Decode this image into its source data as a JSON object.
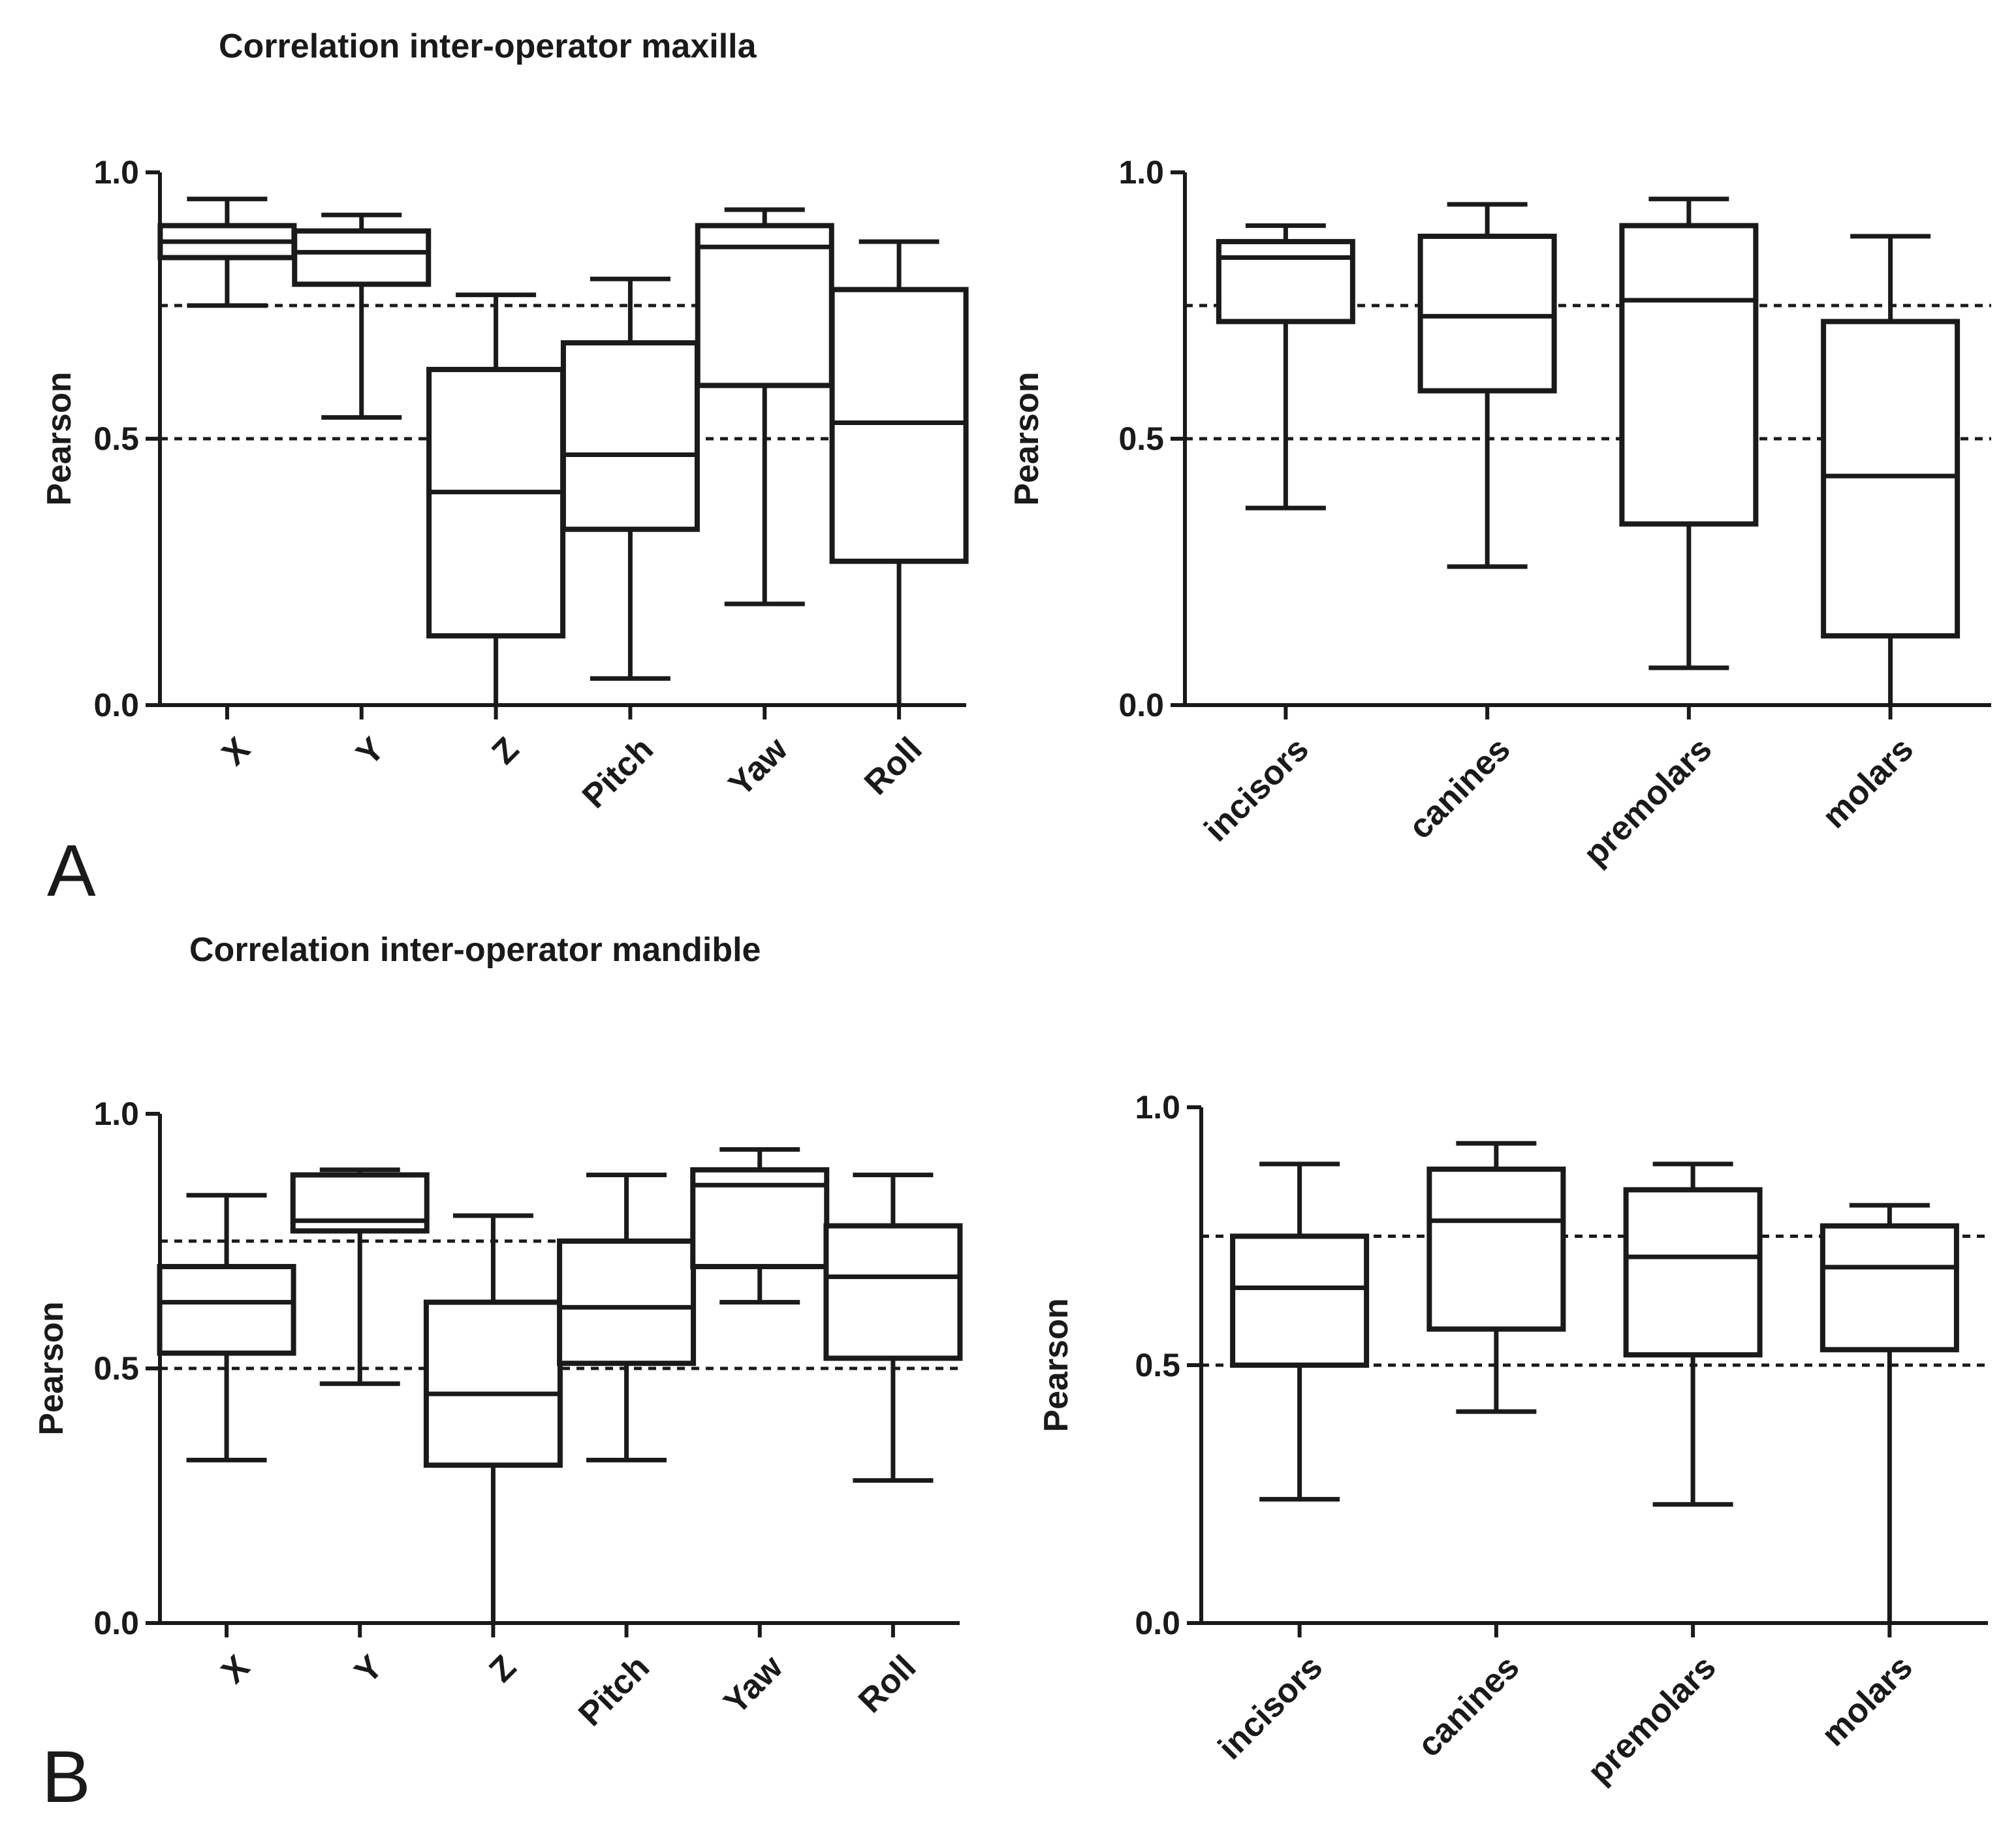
{
  "panels": [
    {
      "letter": "A",
      "title": "Correlation inter-operator maxilla"
    },
    {
      "letter": "B",
      "title": "Correlation inter-operator mandible"
    }
  ],
  "chart_data": [
    {
      "id": "A-left",
      "type": "boxplot",
      "panel": "A",
      "title": "Correlation inter-operator maxilla",
      "ylabel": "Pearson",
      "ylim": [
        0,
        1
      ],
      "yticks": [
        "0.0",
        "0.5",
        "1.0"
      ],
      "reference_lines": [
        0.5,
        0.75
      ],
      "categories": [
        "X",
        "Y",
        "Z",
        "Pitch",
        "Yaw",
        "Roll"
      ],
      "boxes": [
        {
          "min": 0.75,
          "q1": 0.84,
          "median": 0.87,
          "q3": 0.9,
          "max": 0.95
        },
        {
          "min": 0.54,
          "q1": 0.79,
          "median": 0.85,
          "q3": 0.89,
          "max": 0.92
        },
        {
          "min": 0.0,
          "q1": 0.13,
          "median": 0.4,
          "q3": 0.63,
          "max": 0.77
        },
        {
          "min": 0.05,
          "q1": 0.33,
          "median": 0.47,
          "q3": 0.68,
          "max": 0.8
        },
        {
          "min": 0.19,
          "q1": 0.6,
          "median": 0.86,
          "q3": 0.9,
          "max": 0.93
        },
        {
          "min": 0.0,
          "q1": 0.27,
          "median": 0.53,
          "q3": 0.78,
          "max": 0.87
        }
      ]
    },
    {
      "id": "A-right",
      "type": "boxplot",
      "panel": "A",
      "ylabel": "Pearson",
      "ylim": [
        0,
        1
      ],
      "yticks": [
        "0.0",
        "0.5",
        "1.0"
      ],
      "reference_lines": [
        0.5,
        0.75
      ],
      "categories": [
        "incisors",
        "canines",
        "premolars",
        "molars"
      ],
      "boxes": [
        {
          "min": 0.37,
          "q1": 0.72,
          "median": 0.84,
          "q3": 0.87,
          "max": 0.9
        },
        {
          "min": 0.26,
          "q1": 0.59,
          "median": 0.73,
          "q3": 0.88,
          "max": 0.94
        },
        {
          "min": 0.07,
          "q1": 0.34,
          "median": 0.76,
          "q3": 0.9,
          "max": 0.95
        },
        {
          "min": 0.0,
          "q1": 0.13,
          "median": 0.43,
          "q3": 0.72,
          "max": 0.88
        }
      ]
    },
    {
      "id": "B-left",
      "type": "boxplot",
      "panel": "B",
      "title": "Correlation inter-operator mandible",
      "ylabel": "Pearson",
      "ylim": [
        0,
        1
      ],
      "yticks": [
        "0.0",
        "0.5",
        "1.0"
      ],
      "reference_lines": [
        0.5,
        0.75
      ],
      "categories": [
        "X",
        "Y",
        "Z",
        "Pitch",
        "Yaw",
        "Roll"
      ],
      "boxes": [
        {
          "min": 0.32,
          "q1": 0.53,
          "median": 0.63,
          "q3": 0.7,
          "max": 0.84
        },
        {
          "min": 0.47,
          "q1": 0.77,
          "median": 0.79,
          "q3": 0.88,
          "max": 0.89
        },
        {
          "min": 0.0,
          "q1": 0.31,
          "median": 0.45,
          "q3": 0.63,
          "max": 0.8
        },
        {
          "min": 0.32,
          "q1": 0.51,
          "median": 0.62,
          "q3": 0.75,
          "max": 0.88
        },
        {
          "min": 0.63,
          "q1": 0.7,
          "median": 0.86,
          "q3": 0.89,
          "max": 0.93
        },
        {
          "min": 0.28,
          "q1": 0.52,
          "median": 0.68,
          "q3": 0.78,
          "max": 0.88
        }
      ]
    },
    {
      "id": "B-right",
      "type": "boxplot",
      "panel": "B",
      "ylabel": "Pearson",
      "ylim": [
        0,
        1
      ],
      "yticks": [
        "0.0",
        "0.5",
        "1.0"
      ],
      "reference_lines": [
        0.5,
        0.75
      ],
      "categories": [
        "incisors",
        "canines",
        "premolars",
        "molars"
      ],
      "boxes": [
        {
          "min": 0.24,
          "q1": 0.5,
          "median": 0.65,
          "q3": 0.75,
          "max": 0.89
        },
        {
          "min": 0.41,
          "q1": 0.57,
          "median": 0.78,
          "q3": 0.88,
          "max": 0.93
        },
        {
          "min": 0.23,
          "q1": 0.52,
          "median": 0.71,
          "q3": 0.84,
          "max": 0.89
        },
        {
          "min": 0.0,
          "q1": 0.53,
          "median": 0.69,
          "q3": 0.77,
          "max": 0.81
        }
      ]
    }
  ]
}
